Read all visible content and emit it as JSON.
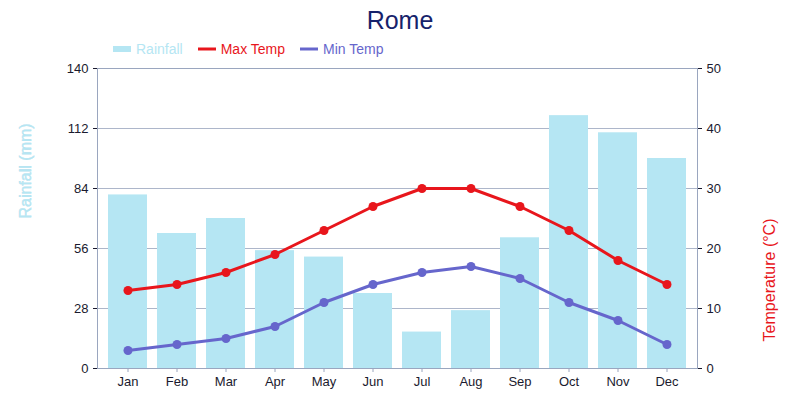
{
  "chart_data": {
    "type": "bar",
    "title": "Rome",
    "categories": [
      "Jan",
      "Feb",
      "Mar",
      "Apr",
      "May",
      "Jun",
      "Jul",
      "Aug",
      "Sep",
      "Oct",
      "Nov",
      "Dec"
    ],
    "series": [
      {
        "name": "Rainfall",
        "type": "bar",
        "color": "#b5e6f3",
        "values": [
          81,
          63,
          70,
          55,
          52,
          35,
          17,
          27,
          61,
          118,
          110,
          98
        ]
      },
      {
        "name": "Max Temp",
        "type": "line",
        "color": "#e8161c",
        "marker": "circle",
        "axis": "y2",
        "values": [
          13,
          14,
          16,
          19,
          23,
          27,
          30,
          30,
          27,
          23,
          18,
          14
        ]
      },
      {
        "name": "Min Temp",
        "type": "line",
        "color": "#6666cc",
        "marker": "circle",
        "axis": "y2",
        "values": [
          3,
          4,
          5,
          7,
          11,
          14,
          16,
          17,
          15,
          11,
          8,
          4
        ]
      }
    ],
    "ylabel": "Rainfall (mm)",
    "y2label": "Temperature (°C)",
    "ylim": [
      0,
      140
    ],
    "yticks": [
      0,
      28,
      56,
      84,
      112,
      140
    ],
    "y2lim": [
      0,
      50
    ],
    "y2ticks": [
      0,
      10,
      20,
      30,
      40,
      50
    ],
    "grid": true,
    "legend": "top-left"
  }
}
